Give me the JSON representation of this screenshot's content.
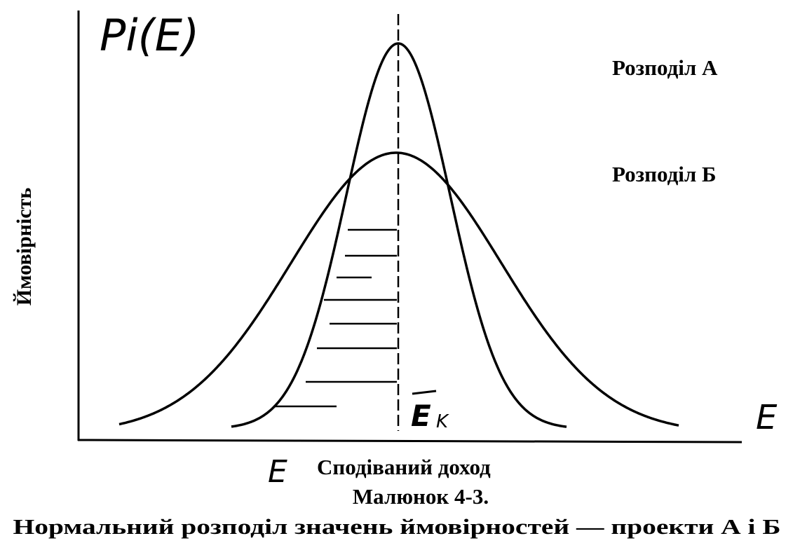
{
  "axis_label_y": "Pi(E)",
  "axis_label_x": "E",
  "x_axis_left_label": "E",
  "mean_label": {
    "base": "E",
    "subscript": "K"
  },
  "curve_labels": [
    "Розподіл А",
    "Розподіл Б"
  ],
  "y_axis_title": "Ймовірність",
  "x_axis_title": "Сподіваний доход",
  "figure_number": "Малюнок 4-3.",
  "caption": "Нормальний розподіл значень ймовірностей — проекти А і Б"
}
